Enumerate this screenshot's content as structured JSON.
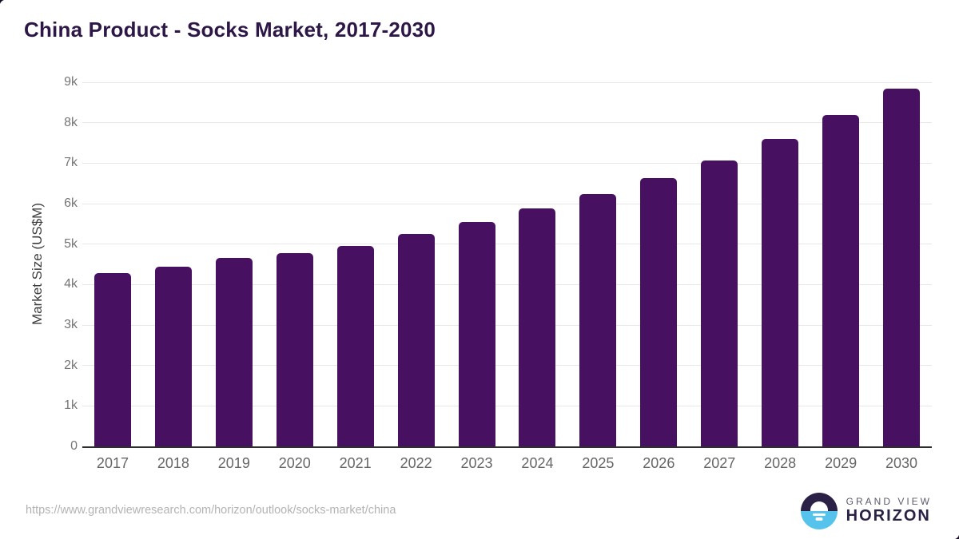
{
  "title": "China Product - Socks Market, 2017-2030",
  "chart_data": {
    "type": "bar",
    "title": "China Product - Socks Market, 2017-2030",
    "categories": [
      "2017",
      "2018",
      "2019",
      "2020",
      "2021",
      "2022",
      "2023",
      "2024",
      "2025",
      "2026",
      "2027",
      "2028",
      "2029",
      "2030"
    ],
    "values": [
      4280,
      4450,
      4660,
      4780,
      4960,
      5250,
      5540,
      5880,
      6240,
      6630,
      7070,
      7600,
      8200,
      8850
    ],
    "xlabel": "",
    "ylabel": "Market Size (US$M)",
    "ylim": [
      0,
      9000
    ],
    "ytick_step": 1000,
    "ytick_labels": [
      "0",
      "1k",
      "2k",
      "3k",
      "4k",
      "5k",
      "6k",
      "7k",
      "8k",
      "9k"
    ],
    "grid": "horizontal",
    "legend": "none",
    "bar_color": "#481061"
  },
  "colors": {
    "bar": "#481061",
    "title": "#2d1747",
    "y_tick": "#757575",
    "x_tick": "#666666",
    "gridline": "#e7e7e7",
    "axis_line": "#2e2e2e",
    "url_text": "#b3b3b3",
    "logo_dark": "#2b2045",
    "logo_blue": "#56c3ec"
  },
  "footer": {
    "source_url": "https://www.grandviewresearch.com/horizon/outlook/socks-market/china",
    "logo": {
      "line1": "GRAND VIEW",
      "line2": "HORIZON",
      "icon": "horizon-sun-icon"
    }
  }
}
